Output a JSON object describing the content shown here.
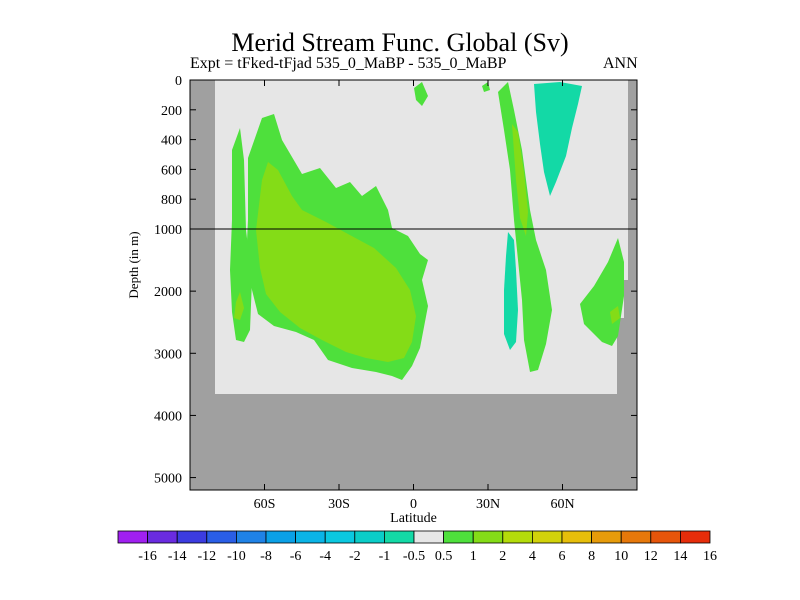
{
  "chart_data": {
    "type": "contour",
    "title": "Merid Stream Func. Global (Sv)",
    "subtitle_left": "Expt = tFked-tFjad  535_0_MaBP - 535_0_MaBP",
    "subtitle_right": "ANN",
    "xlabel": "Latitude",
    "ylabel": "Depth (in m)",
    "xlim": [
      -90,
      90
    ],
    "x_ticks": [
      {
        "value": -60,
        "label": "60S"
      },
      {
        "value": -30,
        "label": "30S"
      },
      {
        "value": 0,
        "label": "0"
      },
      {
        "value": 30,
        "label": "30N"
      },
      {
        "value": 60,
        "label": "60N"
      }
    ],
    "y_ticks": [
      {
        "value": 0,
        "label": "0"
      },
      {
        "value": 200,
        "label": "200"
      },
      {
        "value": 400,
        "label": "400"
      },
      {
        "value": 600,
        "label": "600"
      },
      {
        "value": 800,
        "label": "800"
      },
      {
        "value": 1000,
        "label": "1000"
      },
      {
        "value": 2000,
        "label": "2000"
      },
      {
        "value": 3000,
        "label": "3000"
      },
      {
        "value": 4000,
        "label": "4000"
      },
      {
        "value": 5000,
        "label": "5000"
      }
    ],
    "y_axis_note": "depth axis split: 0-1000 m upper panel, 1000-5200 m lower panel",
    "colorbar": {
      "labels": [
        "-16",
        "-14",
        "-12",
        "-10",
        "-8",
        "-6",
        "-4",
        "-2",
        "-1",
        "-0.5",
        "0.5",
        "1",
        "2",
        "4",
        "6",
        "8",
        "10",
        "12",
        "14",
        "16"
      ],
      "colors": [
        "#a020f0",
        "#6a2be0",
        "#3c3ce0",
        "#2a5ee6",
        "#1f82e6",
        "#0aa0e6",
        "#0ab4e6",
        "#0ac8e0",
        "#0acdc8",
        "#13d9a6",
        "#e6e6e6",
        "#4ee03c",
        "#84dc17",
        "#b4dc0a",
        "#d2d20a",
        "#e6be0a",
        "#e69b0a",
        "#e6780a",
        "#e6550a",
        "#e62d0a"
      ]
    },
    "colors": {
      "land": "#a0a0a0",
      "zero_band": "#e6e6e6",
      "contour_0.5_1": "#4ee03c",
      "contour_1_2": "#84dc17",
      "contour_neg": "#13d9a6",
      "contour_neg_2": "#0acdc8"
    }
  }
}
